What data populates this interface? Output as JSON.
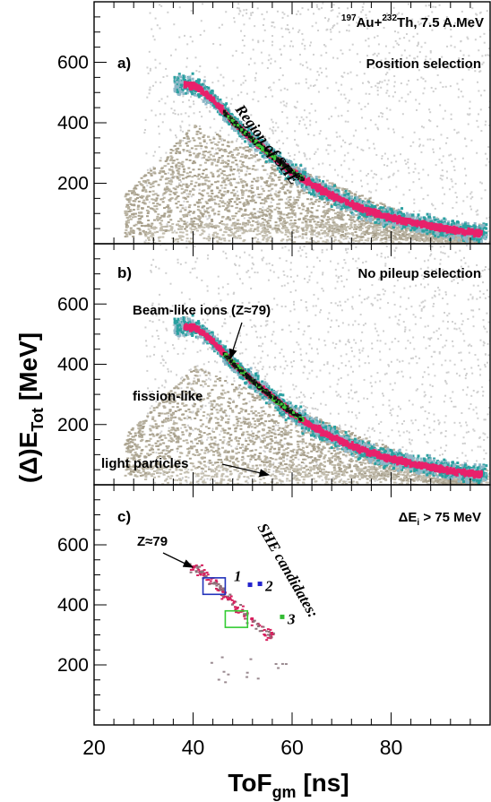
{
  "chart_data": {
    "type": "scatter",
    "title": "¹⁹⁷Au+²³²Th, 7.5 A.MeV",
    "title_parts": {
      "pre": "197",
      "a": "Au+",
      "pre2": "232",
      "b": "Th, 7.5 A.MeV"
    },
    "xlabel": "ToF",
    "xlabel_sub": "gm",
    "xlabel_unit": "[ns]",
    "ylabel": "(Δ)E",
    "ylabel_sub": "Tot",
    "ylabel_unit": "[MeV]",
    "xlim": [
      20,
      100
    ],
    "x_ticks": [
      20,
      40,
      60,
      80
    ],
    "panels": [
      {
        "id": "a",
        "label": "a)",
        "selection": "Position selection",
        "ylim": [
          0,
          800
        ],
        "y_ticks": [
          200,
          400,
          600
        ],
        "annotations": [
          "Region of SHE"
        ]
      },
      {
        "id": "b",
        "label": "b)",
        "selection": "No pileup selection",
        "ylim": [
          0,
          800
        ],
        "y_ticks": [
          200,
          400,
          600
        ],
        "annotations": [
          "Beam-like ions (Z≈79)",
          "fission-like",
          "light particles"
        ]
      },
      {
        "id": "c",
        "label": "c)",
        "selection": "ΔEᵢ > 75  MeV",
        "selection_parts": {
          "a": "ΔE",
          "sub": "i",
          "b": " > 75  MeV"
        },
        "ylim": [
          0,
          800
        ],
        "y_ticks": [
          200,
          400,
          600
        ],
        "annotations": [
          "Z≈79",
          "SHE candidates:"
        ],
        "candidates": [
          {
            "label": "1",
            "x": 51.5,
            "y": 467,
            "color": "#2222cc"
          },
          {
            "label": "2",
            "x": 53.5,
            "y": 470,
            "color": "#2222cc"
          },
          {
            "label": "3",
            "x": 58,
            "y": 360,
            "color": "#33bb33"
          }
        ],
        "boxes": [
          {
            "x": [
              42,
              46.5
            ],
            "y": [
              435,
              490
            ],
            "color": "#2233bb"
          },
          {
            "x": [
              46.5,
              51
            ],
            "y": [
              325,
              380
            ],
            "color": "#33cc33"
          }
        ]
      }
    ],
    "beam_ridge": {
      "x": [
        38,
        40,
        42,
        44,
        46,
        48,
        50,
        52,
        54,
        56,
        58,
        60,
        62,
        65,
        68,
        71,
        74,
        78,
        82,
        86,
        90,
        94,
        98
      ],
      "y": [
        530,
        525,
        505,
        475,
        440,
        405,
        375,
        345,
        318,
        292,
        266,
        240,
        218,
        188,
        162,
        140,
        120,
        98,
        82,
        68,
        56,
        46,
        38
      ]
    },
    "colors": {
      "ridge_core": "#e8216b",
      "ridge_inner": "#111111",
      "ridge_edge": "#2aa0a0",
      "background_cloud": "#b9b3a2",
      "faint": "#cfcfcf"
    }
  }
}
